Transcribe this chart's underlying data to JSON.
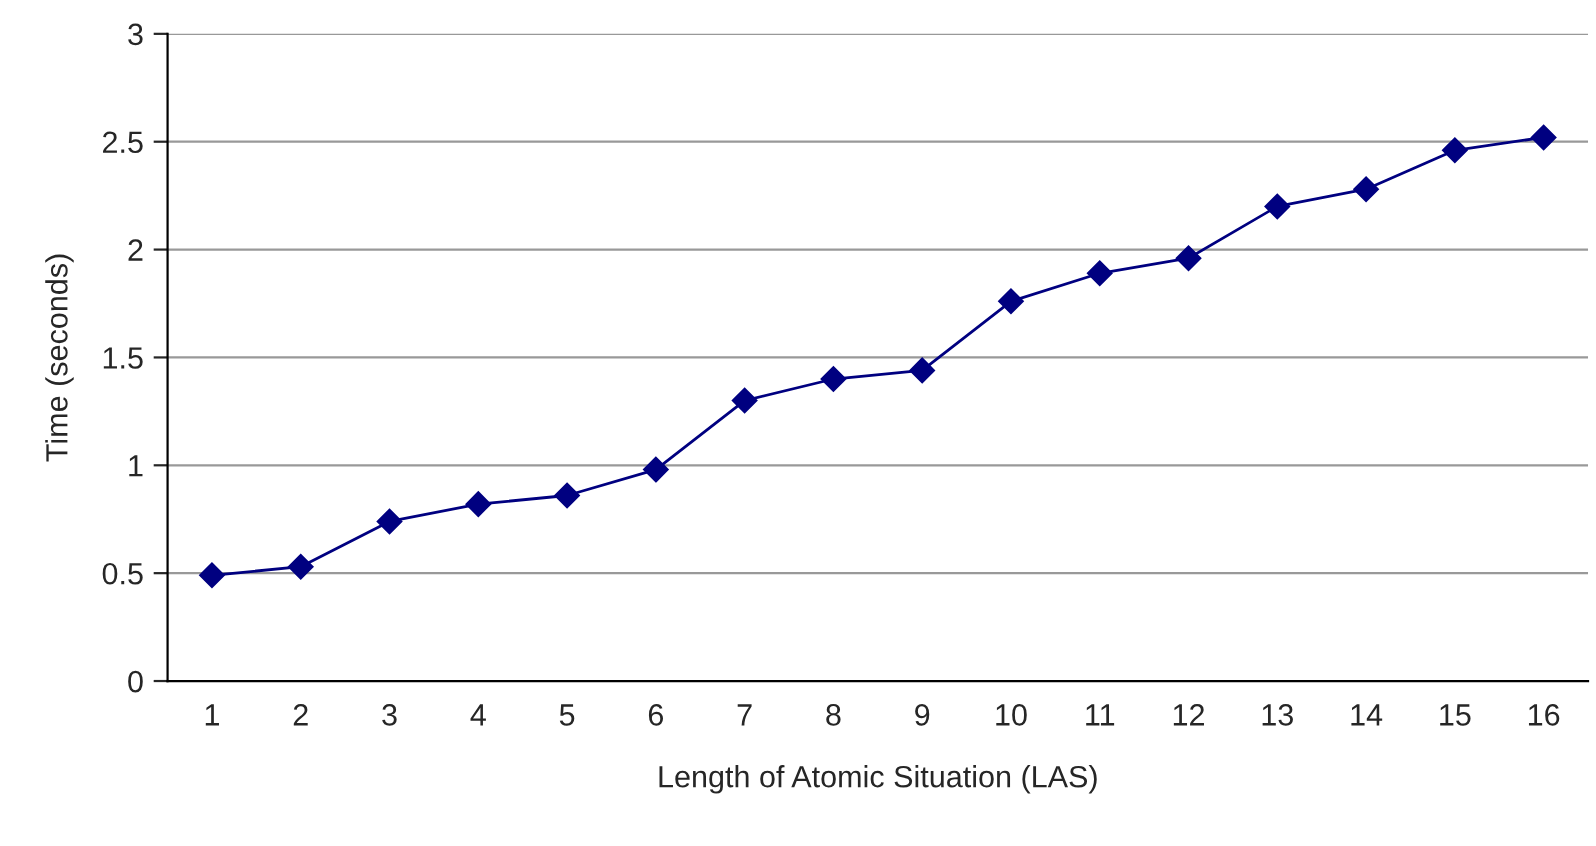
{
  "chart_data": {
    "type": "line",
    "xlabel": "Length of Atomic Situation (LAS)",
    "ylabel": "Time (seconds)",
    "categories": [
      "1",
      "2",
      "3",
      "4",
      "5",
      "6",
      "7",
      "8",
      "9",
      "10",
      "11",
      "12",
      "13",
      "14",
      "15",
      "16"
    ],
    "series": [
      {
        "color": "#000080",
        "values": [
          0.49,
          0.53,
          0.74,
          0.82,
          0.86,
          0.98,
          1.3,
          1.4,
          1.44,
          1.76,
          1.89,
          1.96,
          2.2,
          2.28,
          2.46,
          2.52
        ]
      }
    ],
    "ylim": [
      0,
      3
    ],
    "yticks": [
      0,
      0.5,
      1,
      1.5,
      2,
      2.5,
      3
    ],
    "grid": "y",
    "marker": "diamond",
    "line_style": "solid"
  }
}
